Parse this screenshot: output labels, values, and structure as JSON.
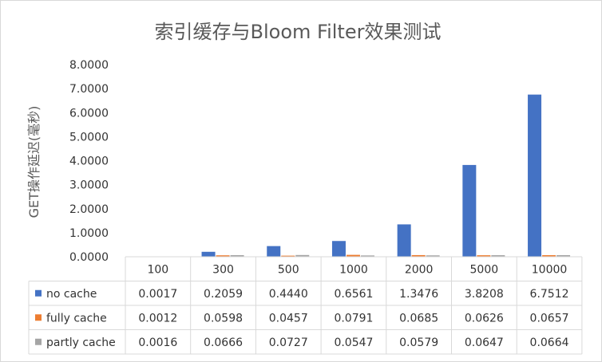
{
  "chart_data": {
    "type": "bar",
    "title": "索引缓存与Bloom Filter效果测试",
    "xlabel": "",
    "ylabel": "GET操作延迟(毫秒)",
    "ylim": [
      0,
      8
    ],
    "yticks": [
      "8.0000",
      "7.0000",
      "6.0000",
      "5.0000",
      "4.0000",
      "3.0000",
      "2.0000",
      "1.0000",
      "0.0000"
    ],
    "categories": [
      "100",
      "300",
      "500",
      "1000",
      "2000",
      "5000",
      "10000"
    ],
    "grid": false,
    "legend": "data-table",
    "series": [
      {
        "name": "no cache",
        "color": "#4472C4",
        "values": [
          0.0017,
          0.2059,
          0.444,
          0.6561,
          1.3476,
          3.8208,
          6.7512
        ],
        "labels": [
          "0.0017",
          "0.2059",
          "0.4440",
          "0.6561",
          "1.3476",
          "3.8208",
          "6.7512"
        ]
      },
      {
        "name": "fully cache",
        "color": "#ED7D31",
        "values": [
          0.0012,
          0.0598,
          0.0457,
          0.0791,
          0.0685,
          0.0626,
          0.0657
        ],
        "labels": [
          "0.0012",
          "0.0598",
          "0.0457",
          "0.0791",
          "0.0685",
          "0.0626",
          "0.0657"
        ]
      },
      {
        "name": "partly cache",
        "color": "#A5A5A5",
        "values": [
          0.0016,
          0.0666,
          0.0727,
          0.0547,
          0.0579,
          0.0647,
          0.0664
        ],
        "labels": [
          "0.0016",
          "0.0666",
          "0.0727",
          "0.0547",
          "0.0579",
          "0.0647",
          "0.0664"
        ]
      }
    ]
  }
}
